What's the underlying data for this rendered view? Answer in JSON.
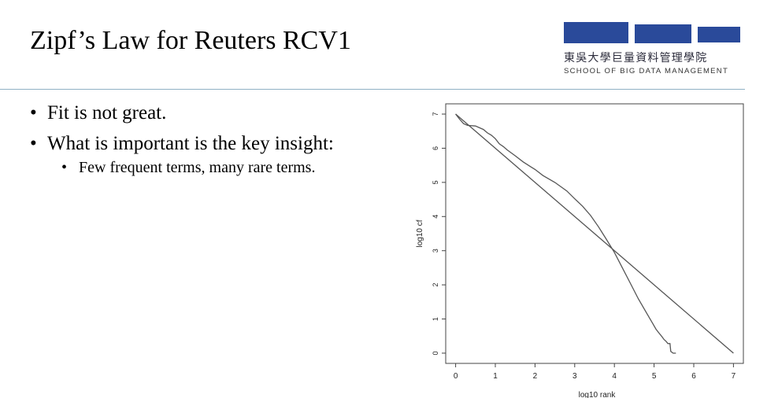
{
  "slide": {
    "title": "Zipf’s Law for Reuters RCV1",
    "bullets": [
      "Fit is not great.",
      "What is important is the key insight:"
    ],
    "sub_bullets": [
      "Few frequent terms, many rare terms."
    ]
  },
  "logo": {
    "chinese_name": "東吳大學巨量資料管理學院",
    "english_name": "SCHOOL OF BIG DATA MANAGEMENT",
    "color": "#2a4a9a"
  },
  "chart_data": {
    "type": "line",
    "xlabel": "log10 rank",
    "ylabel": "log10 cf",
    "xlim": [
      -0.25,
      7.25
    ],
    "ylim": [
      -0.3,
      7.3
    ],
    "x_ticks": [
      0,
      1,
      2,
      3,
      4,
      5,
      6,
      7
    ],
    "y_ticks": [
      0,
      1,
      2,
      3,
      4,
      5,
      6,
      7
    ],
    "grid": false,
    "series": [
      {
        "x": [
          0,
          0.1,
          0.2,
          0.3,
          0.5,
          0.6,
          0.7,
          0.8,
          0.9,
          1.0,
          1.1,
          1.2,
          1.3,
          1.5,
          1.7,
          1.9,
          2.0,
          2.2,
          2.5,
          2.8,
          3.0,
          3.2,
          3.4,
          3.6,
          3.8,
          4.0,
          4.2,
          4.4,
          4.6,
          4.8,
          4.95,
          5.05,
          5.15,
          5.2,
          5.25,
          5.3,
          5.35,
          5.4,
          5.42,
          5.48,
          5.55
        ],
        "y": [
          7.0,
          6.85,
          6.72,
          6.67,
          6.65,
          6.6,
          6.55,
          6.45,
          6.38,
          6.28,
          6.13,
          6.05,
          5.95,
          5.78,
          5.6,
          5.45,
          5.38,
          5.2,
          5.0,
          4.75,
          4.52,
          4.3,
          4.03,
          3.7,
          3.33,
          2.95,
          2.5,
          2.05,
          1.6,
          1.2,
          0.9,
          0.7,
          0.55,
          0.48,
          0.4,
          0.35,
          0.28,
          0.28,
          0.05,
          0.0,
          0.0
        ]
      },
      {
        "x": [
          0,
          7
        ],
        "y": [
          7.0,
          0.0
        ]
      }
    ]
  }
}
